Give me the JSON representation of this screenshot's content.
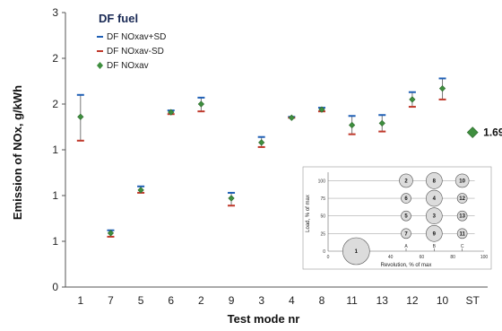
{
  "chart_data": {
    "type": "scatter",
    "legend_title": "DF fuel",
    "legend_position": "top-left",
    "xlabel": "Test mode nr",
    "ylabel": "Emission of NOx, g/kWh",
    "categories": [
      "1",
      "7",
      "5",
      "6",
      "2",
      "9",
      "3",
      "4",
      "8",
      "11",
      "13",
      "12",
      "10",
      "ST"
    ],
    "ylim": [
      0,
      3
    ],
    "y_tick_labels": [
      "0",
      "1",
      "1",
      "1",
      "2",
      "2",
      "3"
    ],
    "series": [
      {
        "name": "DF NOxav+SD",
        "color": "#1f5fb5",
        "values": [
          2.1,
          0.62,
          1.1,
          1.93,
          2.07,
          1.03,
          1.64,
          1.86,
          1.96,
          1.87,
          1.88,
          2.13,
          2.28,
          null
        ]
      },
      {
        "name": "DF NOxav-SD",
        "color": "#c0392b",
        "values": [
          1.6,
          0.55,
          1.03,
          1.89,
          1.92,
          0.89,
          1.53,
          1.85,
          1.92,
          1.67,
          1.7,
          1.97,
          2.05,
          null
        ]
      },
      {
        "name": "DF NOxav",
        "color": "#3e8e3e",
        "values": [
          1.86,
          0.59,
          1.06,
          1.91,
          2.0,
          0.97,
          1.58,
          1.85,
          1.94,
          1.77,
          1.79,
          2.05,
          2.17,
          1.69
        ]
      }
    ],
    "annotation": "1.69",
    "inset": {
      "xlabel": "Revolution, % of max",
      "ylabel": "Load, % of max",
      "x_ticks": [
        "0",
        "20",
        "40",
        "60",
        "80",
        "100"
      ],
      "y_ticks": [
        "0",
        "25",
        "50",
        "75",
        "100"
      ],
      "bubbles": [
        {
          "label": "1",
          "x": 18,
          "y": 0,
          "size": "large"
        },
        {
          "label": "2",
          "x": 50,
          "y": 100,
          "size": "medium"
        },
        {
          "label": "8",
          "x": 68,
          "y": 100,
          "size": "large"
        },
        {
          "label": "10",
          "x": 86,
          "y": 100,
          "size": "medium"
        },
        {
          "label": "6",
          "x": 50,
          "y": 75,
          "size": "small"
        },
        {
          "label": "4",
          "x": 68,
          "y": 75,
          "size": "large"
        },
        {
          "label": "12",
          "x": 86,
          "y": 75,
          "size": "small"
        },
        {
          "label": "5",
          "x": 50,
          "y": 50,
          "size": "small"
        },
        {
          "label": "3",
          "x": 68,
          "y": 50,
          "size": "large"
        },
        {
          "label": "13",
          "x": 86,
          "y": 50,
          "size": "small"
        },
        {
          "label": "7",
          "x": 50,
          "y": 25,
          "size": "small"
        },
        {
          "label": "9",
          "x": 68,
          "y": 25,
          "size": "large"
        },
        {
          "label": "11",
          "x": 86,
          "y": 25,
          "size": "small"
        }
      ],
      "arrow_labels": [
        {
          "label": "A",
          "x": 50
        },
        {
          "label": "B",
          "x": 68
        },
        {
          "label": "C",
          "x": 86
        }
      ]
    }
  }
}
